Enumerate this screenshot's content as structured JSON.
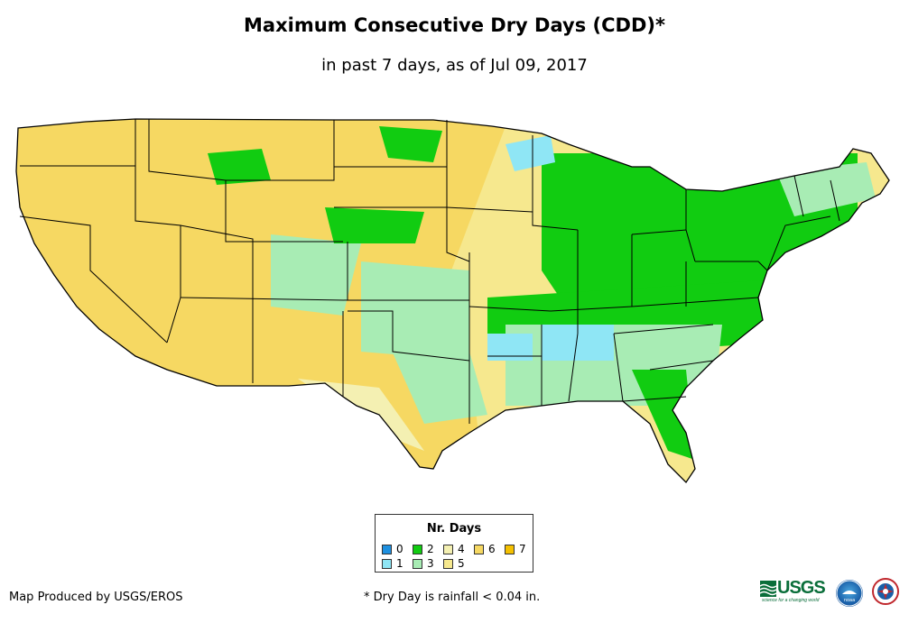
{
  "title": "Maximum Consecutive Dry Days (CDD)*",
  "subtitle": "in past 7 days, as of Jul 09, 2017",
  "legend": {
    "title": "Nr. Days",
    "items": [
      {
        "label": "0",
        "color": "#1e90e0"
      },
      {
        "label": "1",
        "color": "#8fe6f5"
      },
      {
        "label": "2",
        "color": "#11cc11"
      },
      {
        "label": "3",
        "color": "#a8ecb4"
      },
      {
        "label": "4",
        "color": "#f4f0b2"
      },
      {
        "label": "5",
        "color": "#f6e88e"
      },
      {
        "label": "6",
        "color": "#f6d862"
      },
      {
        "label": "7",
        "color": "#f4c000"
      }
    ]
  },
  "footer": {
    "credit": "Map Produced by USGS/EROS",
    "note": "* Dry Day is rainfall < 0.04 in."
  },
  "logos": {
    "usgs": "USGS",
    "usgs_tagline": "science for a changing world",
    "noaa": "noaa"
  }
}
